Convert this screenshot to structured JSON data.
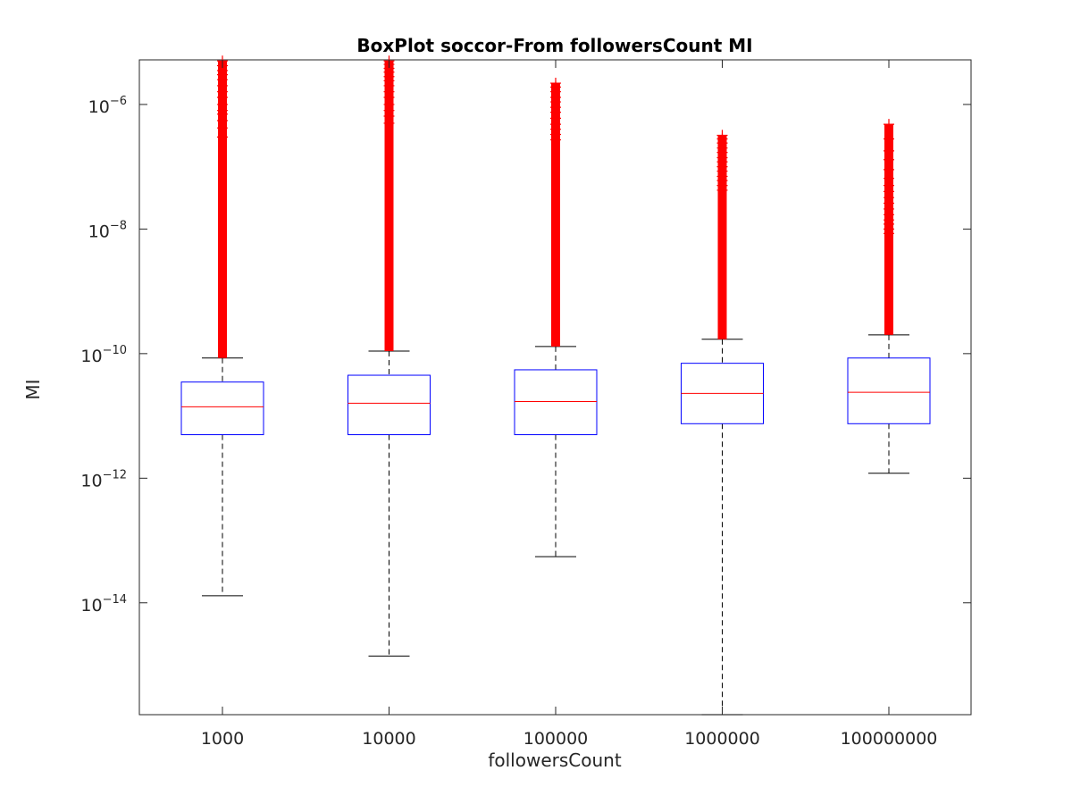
{
  "chart_data": {
    "type": "boxplot",
    "title": "BoxPlot soccor-From followersCount MI",
    "xlabel": "followersCount",
    "ylabel": "MI",
    "yscale": "log",
    "ylim": [
      1.6e-16,
      5.2e-06
    ],
    "yticks": [
      {
        "value": 1e-14,
        "base": "10",
        "exp": "−14"
      },
      {
        "value": 1e-12,
        "base": "10",
        "exp": "−12"
      },
      {
        "value": 1e-10,
        "base": "10",
        "exp": "−10"
      },
      {
        "value": 1e-08,
        "base": "10",
        "exp": "−8"
      },
      {
        "value": 1e-06,
        "base": "10",
        "exp": "−6"
      }
    ],
    "categories": [
      "1000",
      "10000",
      "100000",
      "1000000",
      "100000000"
    ],
    "box_color": "#0000ff",
    "median_color": "#ff0000",
    "outlier_color": "#ff0000",
    "whisker_color": "#000000",
    "boxes": [
      {
        "category": "1000",
        "whisker_low": 1.3e-14,
        "q1": 5e-12,
        "median": 1.4e-11,
        "q3": 3.5e-11,
        "whisker_high": 8.5e-11,
        "outliers": [
          5e-06,
          4.2e-06,
          3.5e-06,
          3e-06,
          2.5e-06,
          2e-06,
          1.6e-06,
          1.3e-06,
          1e-06,
          8e-07,
          7e-07,
          5.5e-07,
          4.2e-07,
          3e-07
        ]
      },
      {
        "category": "10000",
        "whisker_low": 1.4e-15,
        "q1": 5e-12,
        "median": 1.6e-11,
        "q3": 4.5e-11,
        "whisker_high": 1.1e-10,
        "outliers": [
          5e-06,
          4.4e-06,
          3.8e-06,
          3.3e-06,
          2.8e-06,
          2.4e-06,
          2e-06,
          1.6e-06,
          1.3e-06,
          1e-06,
          8e-07,
          6.5e-07,
          5e-07
        ]
      },
      {
        "category": "100000",
        "whisker_low": 5.5e-14,
        "q1": 5e-12,
        "median": 1.7e-11,
        "q3": 5.5e-11,
        "whisker_high": 1.3e-10,
        "outliers": [
          2.2e-06,
          1.9e-06,
          1.6e-06,
          1.3e-06,
          1.1e-06,
          9e-07,
          7.5e-07,
          6e-07,
          4.8e-07,
          4e-07,
          3.3e-07,
          2.7e-07
        ]
      },
      {
        "category": "1000000",
        "whisker_low": 1.6e-16,
        "q1": 7.5e-12,
        "median": 2.3e-11,
        "q3": 7e-11,
        "whisker_high": 1.7e-10,
        "outliers": [
          3.2e-07,
          2.8e-07,
          2.4e-07,
          2e-07,
          1.7e-07,
          1.4e-07,
          1.2e-07,
          1e-07,
          8.5e-08,
          7e-08,
          6e-08,
          5e-08,
          4.2e-08
        ]
      },
      {
        "category": "100000000",
        "whisker_low": 1.2e-12,
        "q1": 7.5e-12,
        "median": 2.4e-11,
        "q3": 8.5e-11,
        "whisker_high": 2e-10,
        "outliers": [
          4.8e-07,
          2.8e-07,
          1.8e-07,
          1.3e-07,
          9e-08,
          6.5e-08,
          5e-08,
          4e-08,
          3.2e-08,
          2.6e-08,
          2.1e-08,
          1.7e-08,
          1.4e-08,
          1.2e-08,
          1e-08,
          8.5e-09
        ]
      }
    ]
  }
}
